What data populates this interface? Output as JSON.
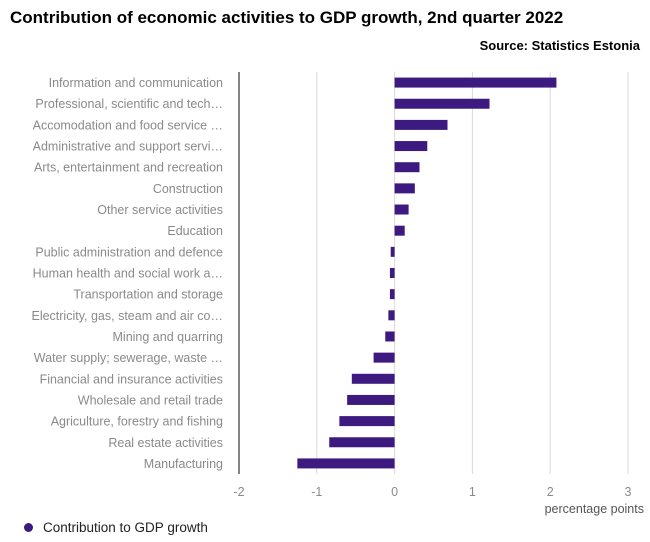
{
  "header": {
    "title": "Contribution of economic activities to GDP growth, 2nd quarter 2022",
    "source": "Source: Statistics Estonia"
  },
  "colors": {
    "bar": "#3d1a80",
    "grid": "#d9d9d9",
    "axis": "#333333"
  },
  "chart_data": {
    "type": "bar",
    "orientation": "horizontal",
    "categories": [
      "Information and communication",
      "Professional, scientific and tech…",
      "Accomodation and food service …",
      "Administrative and support servi…",
      "Arts, entertainment and recreation",
      "Construction",
      "Other service activities",
      "Education",
      "Public administration and defence",
      "Human health and social work a…",
      "Transportation and storage",
      "Electricity, gas, steam and air co…",
      "Mining and quarring",
      "Water supply; sewerage, waste …",
      "Financial and insurance activities",
      "Wholesale and retail trade",
      "Agriculture, forestry and fishing",
      "Real estate activities",
      "Manufacturing"
    ],
    "series": [
      {
        "name": "Contribution to GDP growth",
        "values": [
          2.08,
          1.22,
          0.68,
          0.42,
          0.32,
          0.26,
          0.18,
          0.13,
          -0.05,
          -0.06,
          -0.06,
          -0.08,
          -0.12,
          -0.27,
          -0.55,
          -0.61,
          -0.71,
          -0.84,
          -1.25
        ]
      }
    ],
    "xlabel": "percentage points",
    "xlim": [
      -2,
      3
    ],
    "xticks": [
      "-2",
      "-1",
      "0",
      "1",
      "2",
      "3"
    ],
    "grid": true,
    "legend": "bottom-left"
  }
}
